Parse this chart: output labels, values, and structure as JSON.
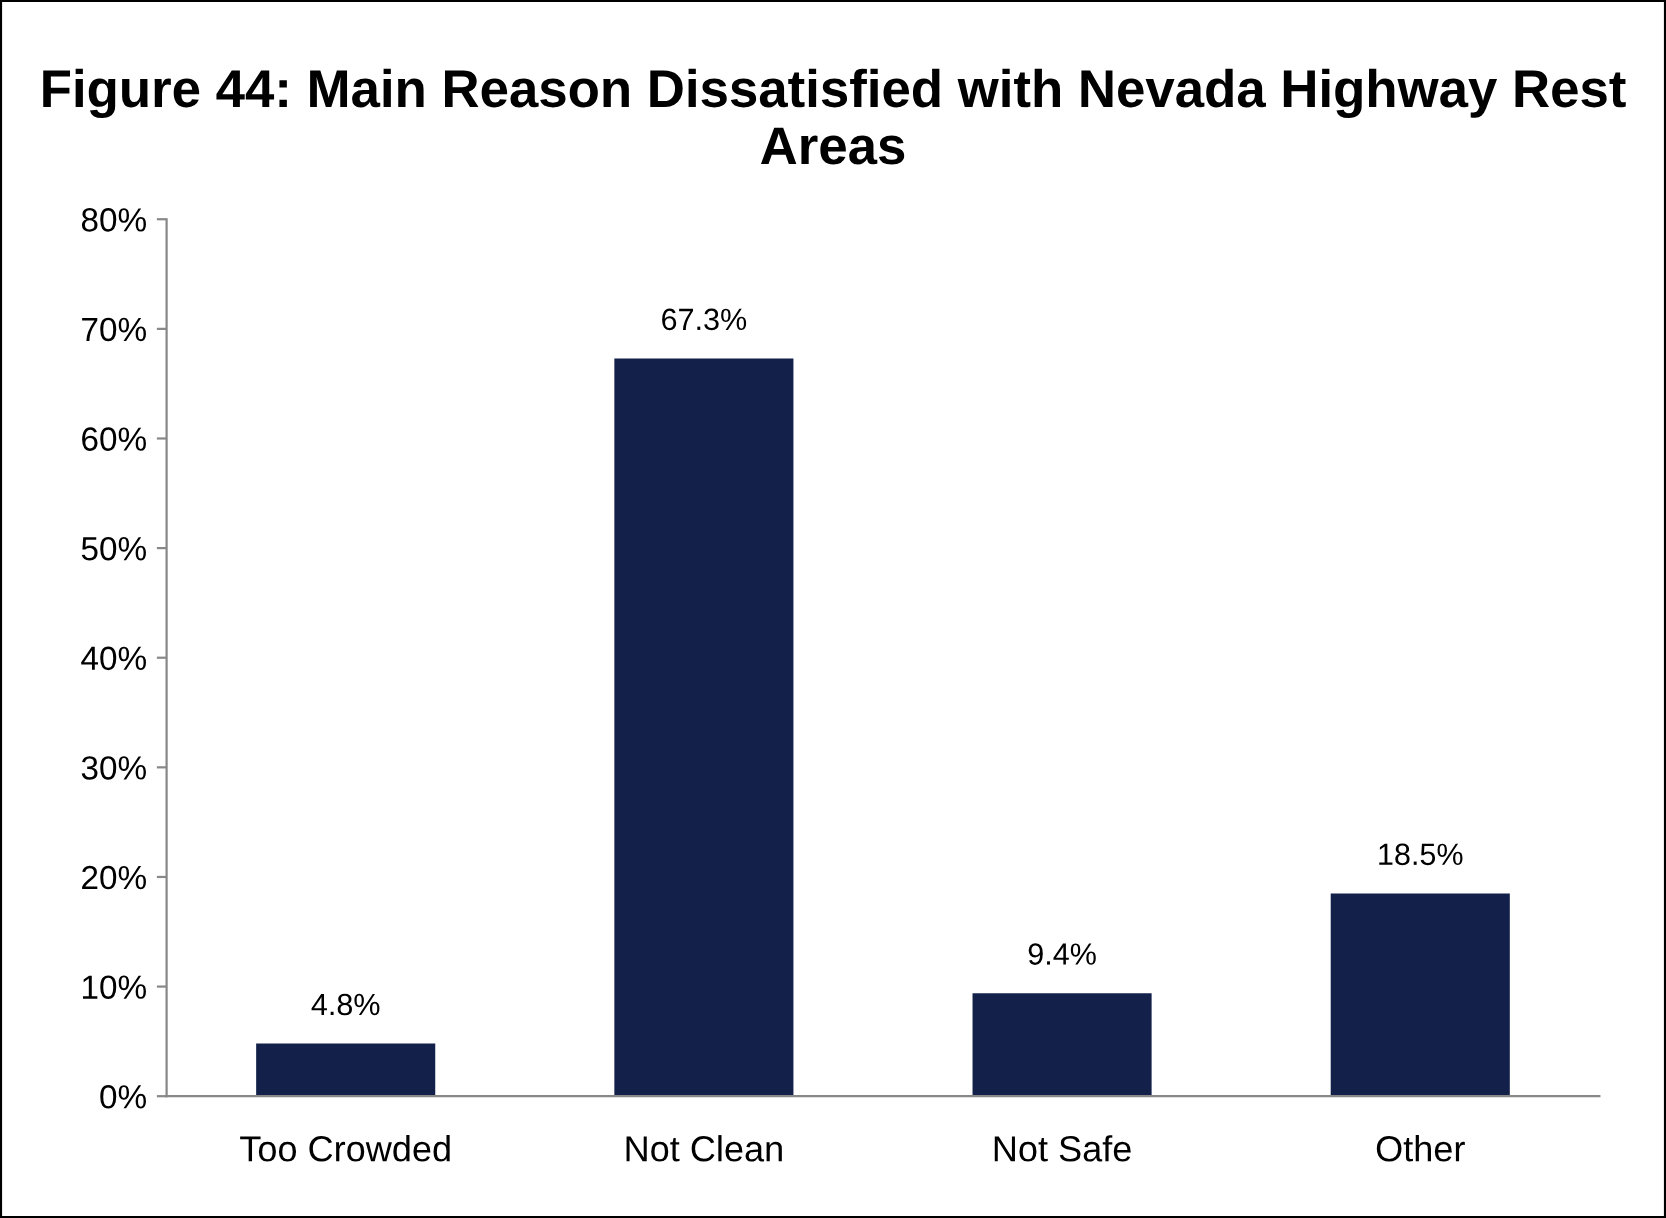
{
  "chart_data": {
    "type": "bar",
    "title": "Figure 44: Main Reason Dissatisfied with Nevada Highway Rest Areas",
    "categories": [
      "Too Crowded",
      "Not Clean",
      "Not Safe",
      "Other"
    ],
    "values": [
      4.8,
      67.3,
      9.4,
      18.5
    ],
    "value_labels": [
      "4.8%",
      "67.3%",
      "9.4%",
      "18.5%"
    ],
    "color": "#13214a",
    "ylim": [
      0,
      80
    ],
    "yticks": [
      {
        "value": 0,
        "label": "0%"
      },
      {
        "value": 10,
        "label": "10%"
      },
      {
        "value": 20,
        "label": "20%"
      },
      {
        "value": 30,
        "label": "30%"
      },
      {
        "value": 40,
        "label": "40%"
      },
      {
        "value": 50,
        "label": "50%"
      },
      {
        "value": 60,
        "label": "60%"
      },
      {
        "value": 70,
        "label": "70%"
      },
      {
        "value": 80,
        "label": "80%"
      }
    ],
    "grid": false,
    "legend": false
  }
}
